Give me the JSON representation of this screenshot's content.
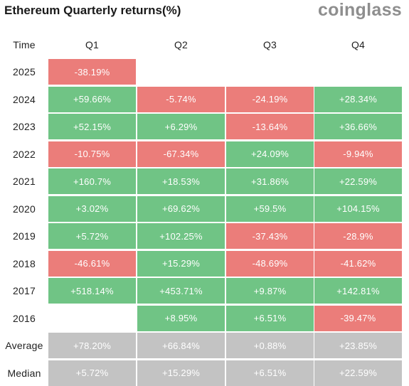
{
  "title": "Ethereum Quarterly returns(%)",
  "brand": "coinglass",
  "colors": {
    "positive": "#70c485",
    "negative": "#eb7d7a",
    "summary": "#c3c3c3"
  },
  "chart_data": {
    "type": "table",
    "row_header": "Time",
    "columns": [
      "Q1",
      "Q2",
      "Q3",
      "Q4"
    ],
    "rows": [
      {
        "label": "2025",
        "values": [
          "-38.19%",
          "",
          "",
          ""
        ]
      },
      {
        "label": "2024",
        "values": [
          "+59.66%",
          "-5.74%",
          "-24.19%",
          "+28.34%"
        ]
      },
      {
        "label": "2023",
        "values": [
          "+52.15%",
          "+6.29%",
          "-13.64%",
          "+36.66%"
        ]
      },
      {
        "label": "2022",
        "values": [
          "-10.75%",
          "-67.34%",
          "+24.09%",
          "-9.94%"
        ]
      },
      {
        "label": "2021",
        "values": [
          "+160.7%",
          "+18.53%",
          "+31.86%",
          "+22.59%"
        ]
      },
      {
        "label": "2020",
        "values": [
          "+3.02%",
          "+69.62%",
          "+59.5%",
          "+104.15%"
        ]
      },
      {
        "label": "2019",
        "values": [
          "+5.72%",
          "+102.25%",
          "-37.43%",
          "-28.9%"
        ]
      },
      {
        "label": "2018",
        "values": [
          "-46.61%",
          "+15.29%",
          "-48.69%",
          "-41.62%"
        ]
      },
      {
        "label": "2017",
        "values": [
          "+518.14%",
          "+453.71%",
          "+9.87%",
          "+142.81%"
        ]
      },
      {
        "label": "2016",
        "values": [
          "",
          "+8.95%",
          "+6.51%",
          "-39.47%"
        ]
      }
    ],
    "summary_rows": [
      {
        "label": "Average",
        "values": [
          "+78.20%",
          "+66.84%",
          "+0.88%",
          "+23.85%"
        ]
      },
      {
        "label": "Median",
        "values": [
          "+5.72%",
          "+15.29%",
          "+6.51%",
          "+22.59%"
        ]
      }
    ]
  }
}
